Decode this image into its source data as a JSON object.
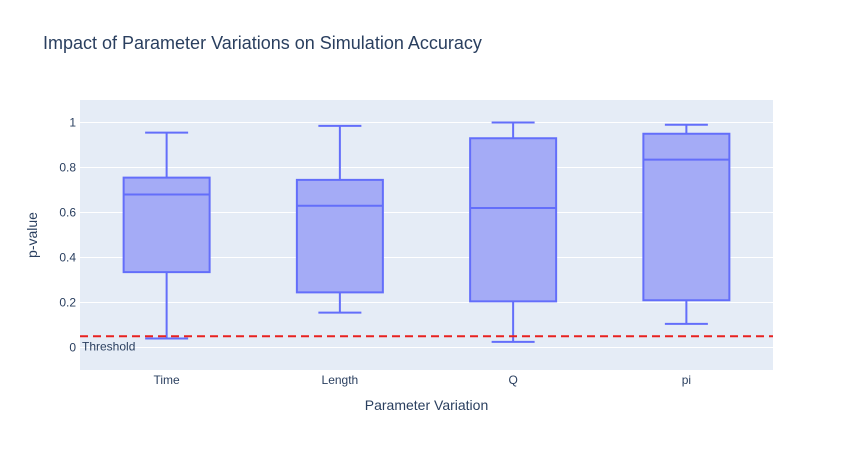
{
  "chart_data": {
    "type": "box",
    "title": "Impact of Parameter Variations on Simulation Accuracy",
    "xlabel": "Parameter Variation",
    "ylabel": "p-value",
    "ylim": [
      -0.1,
      1.1
    ],
    "yticks": [
      0,
      0.2,
      0.4,
      0.6,
      0.8,
      1
    ],
    "ytick_labels": [
      "0",
      "0.2",
      "0.4",
      "0.6",
      "0.8",
      "1"
    ],
    "categories": [
      "Time",
      "Length",
      "Q",
      "pi"
    ],
    "boxes": [
      {
        "category": "Time",
        "min": 0.04,
        "q1": 0.335,
        "median": 0.68,
        "q3": 0.755,
        "max": 0.955
      },
      {
        "category": "Length",
        "min": 0.155,
        "q1": 0.245,
        "median": 0.63,
        "q3": 0.745,
        "max": 0.985
      },
      {
        "category": "Q",
        "min": 0.025,
        "q1": 0.205,
        "median": 0.62,
        "q3": 0.93,
        "max": 1.0
      },
      {
        "category": "pi",
        "min": 0.105,
        "q1": 0.21,
        "median": 0.835,
        "q3": 0.95,
        "max": 0.99
      }
    ],
    "threshold": {
      "value": 0.05,
      "label": "Threshold",
      "color": "#e8211f",
      "style": "dashed"
    },
    "colors": {
      "box_fill": "#a4abf6",
      "box_line": "#636efa",
      "plot_bg": "#e5ecf6",
      "grid": "#ffffff"
    },
    "grid": true,
    "legend": false
  }
}
